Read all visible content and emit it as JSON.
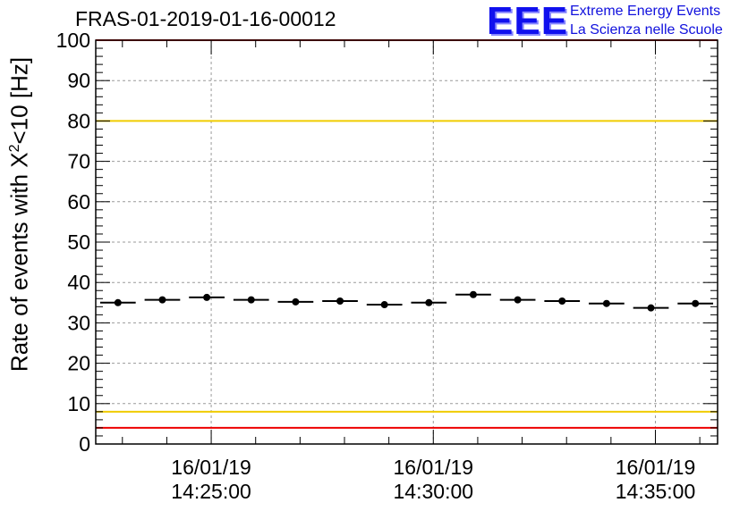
{
  "chart_data": {
    "type": "scatter",
    "title": "FRAS-01-2019-01-16-00012",
    "ylabel_prefix": "Rate of events with X",
    "ylabel_sup": "2",
    "ylabel_suffix": "<10 [Hz]",
    "xlabel": "",
    "ylim": [
      0,
      100
    ],
    "yticks": [
      "0",
      "10",
      "20",
      "30",
      "40",
      "50",
      "60",
      "70",
      "80",
      "90",
      "100"
    ],
    "xtick_labels": [
      {
        "date": "16/01/19",
        "time": "14:25:00"
      },
      {
        "date": "16/01/19",
        "time": "14:30:00"
      },
      {
        "date": "16/01/19",
        "time": "14:35:00"
      }
    ],
    "grid": true,
    "reference_lines": [
      {
        "y": 100,
        "color": "#ee0000"
      },
      {
        "y": 80,
        "color": "#f0cc00"
      },
      {
        "y": 8,
        "color": "#f0cc00"
      },
      {
        "y": 4,
        "color": "#ee0000"
      }
    ],
    "points": [
      {
        "time": "14:22:54",
        "y": 35.0
      },
      {
        "time": "14:23:54",
        "y": 35.7
      },
      {
        "time": "14:24:54",
        "y": 36.3
      },
      {
        "time": "14:25:54",
        "y": 35.7
      },
      {
        "time": "14:26:54",
        "y": 35.2
      },
      {
        "time": "14:27:54",
        "y": 35.4
      },
      {
        "time": "14:28:54",
        "y": 34.5
      },
      {
        "time": "14:29:54",
        "y": 35.0
      },
      {
        "time": "14:30:54",
        "y": 37.0
      },
      {
        "time": "14:31:54",
        "y": 35.7
      },
      {
        "time": "14:32:54",
        "y": 35.4
      },
      {
        "time": "14:33:54",
        "y": 34.8
      },
      {
        "time": "14:34:54",
        "y": 33.7
      },
      {
        "time": "14:35:54",
        "y": 34.8
      }
    ],
    "point_color": "#000000"
  },
  "logo": {
    "mark": "EEE",
    "line1": "Extreme Energy Events",
    "line2": "La Scienza nelle Scuole",
    "color": "#1010ee"
  }
}
